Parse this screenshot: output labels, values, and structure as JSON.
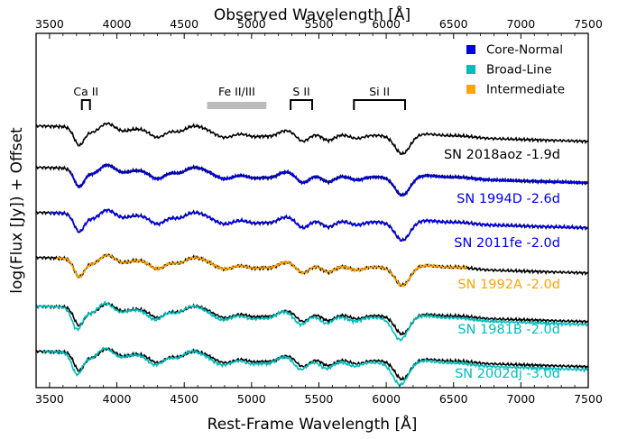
{
  "chart_data": {
    "type": "line",
    "xlabel_bottom": "Rest-Frame Wavelength [Å]",
    "xlabel_top": "Observed Wavelength [Å]",
    "ylabel": "log(Flux [Jy]) + Offset",
    "xlim": [
      3400,
      7500
    ],
    "xlim_top": [
      3400,
      7500
    ],
    "x_ticks_bottom": [
      "3500",
      "4000",
      "4500",
      "5000",
      "5500",
      "6000",
      "6500",
      "7000",
      "7500"
    ],
    "x_ticks_top": [
      "3500",
      "4000",
      "4500",
      "5000",
      "5500",
      "6000",
      "6500",
      "7000",
      "7500"
    ],
    "y_ticks_visible": false,
    "line_labels": [
      {
        "text": "Ca II",
        "x_range": [
          3740,
          3800
        ]
      },
      {
        "text": "Fe II/III",
        "x_range": [
          4670,
          5110
        ]
      },
      {
        "text": "S II",
        "x_range": [
          5290,
          5450
        ]
      },
      {
        "text": "Si II",
        "x_range": [
          5760,
          6140
        ]
      }
    ],
    "legend": {
      "placement": "top-right",
      "entries": [
        {
          "label": "Core-Normal",
          "color": "#0000ee"
        },
        {
          "label": "Broad-Line",
          "color": "#00bdbd"
        },
        {
          "label": "Intermediate",
          "color": "#ffa500"
        }
      ]
    },
    "reference_spectrum": {
      "name": "SN 2018aoz -1.9d",
      "color": "#000000"
    },
    "series": [
      {
        "name": "SN 2018aoz -1.9d",
        "group": "reference",
        "color": "#000000",
        "x_range": [
          3400,
          7500
        ]
      },
      {
        "name": "SN 1994D -2.6d",
        "group": "Core-Normal",
        "color": "#0000ee",
        "x_range": [
          3650,
          7500
        ]
      },
      {
        "name": "SN 2011fe -2.0d",
        "group": "Core-Normal",
        "color": "#0000ee",
        "x_range": [
          3500,
          7500
        ]
      },
      {
        "name": "SN 1992A -2.0d",
        "group": "Intermediate",
        "color": "#ffa500",
        "x_range": [
          3550,
          6600
        ]
      },
      {
        "name": "SN 1981B -2.0d",
        "group": "Broad-Line",
        "color": "#00bdbd",
        "x_range": [
          3400,
          7500
        ]
      },
      {
        "name": "SN 2002dj -3.0d",
        "group": "Broad-Line",
        "color": "#00bdbd",
        "x_range": [
          3450,
          7500
        ]
      }
    ]
  }
}
